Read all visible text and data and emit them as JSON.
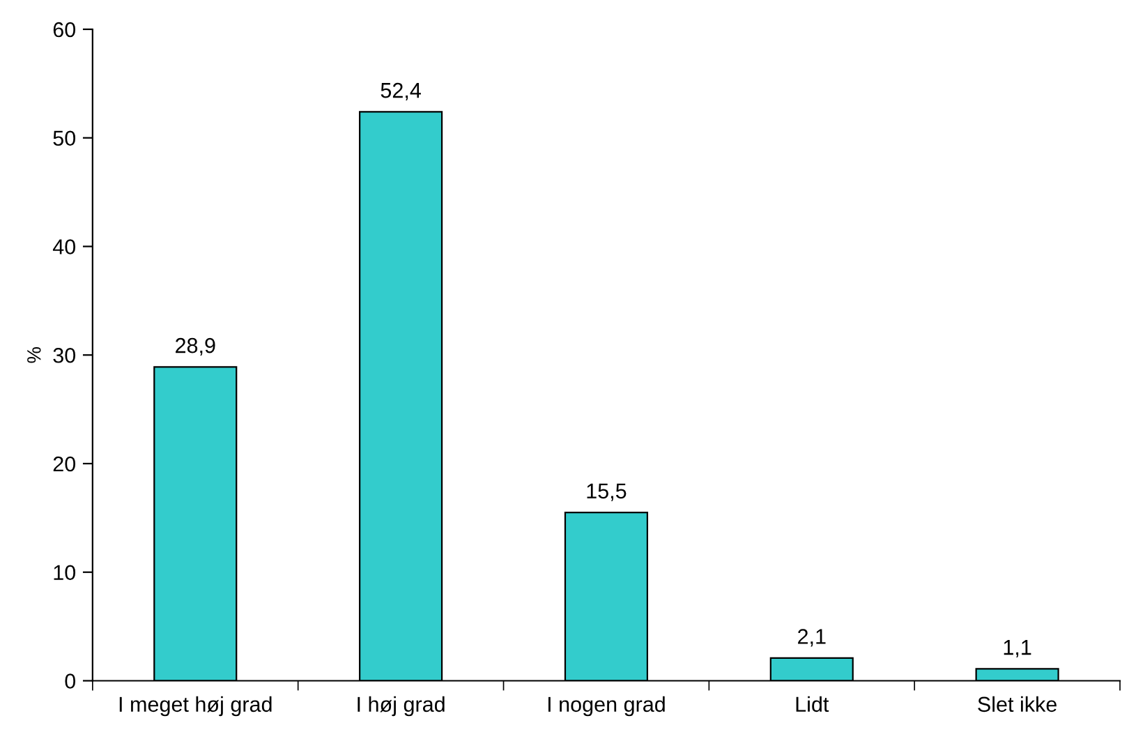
{
  "chart_data": {
    "type": "bar",
    "ylabel": "%",
    "categories": [
      "I meget høj grad",
      "I høj grad",
      "I nogen grad",
      "Lidt",
      "Slet ikke"
    ],
    "values": [
      28.9,
      52.4,
      15.5,
      2.1,
      1.1
    ],
    "value_labels": [
      "28,9",
      "52,4",
      "15,5",
      "2,1",
      "1,1"
    ],
    "color": "#33cccc",
    "ylim": [
      0,
      60
    ],
    "yticks": [
      0,
      10,
      20,
      30,
      40,
      50,
      60
    ],
    "grid": false,
    "legend": false
  }
}
